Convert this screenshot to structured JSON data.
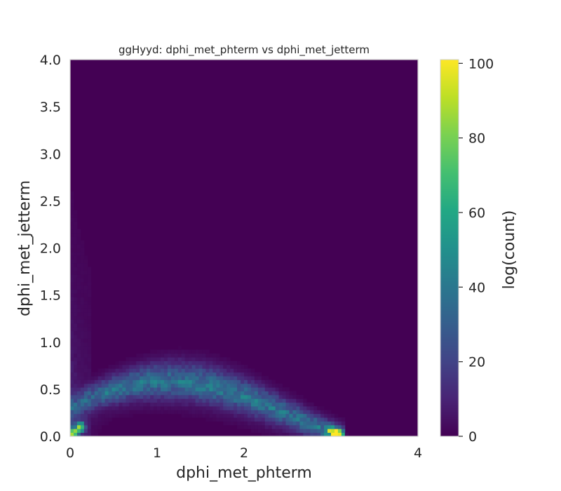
{
  "chart_data": {
    "type": "heatmap",
    "title": "ggHyyd: dphi_met_phterm vs dphi_met_jetterm",
    "xlabel": "dphi_met_phterm",
    "ylabel": "dphi_met_jetterm",
    "xlim": [
      0,
      4
    ],
    "ylim": [
      0,
      4
    ],
    "x_ticks": [
      "0",
      "1",
      "2",
      "4"
    ],
    "y_ticks": [
      "0.0",
      "0.5",
      "1.0",
      "1.5",
      "2.0",
      "2.5",
      "3.0",
      "3.5",
      "4.0"
    ],
    "bins": 100,
    "colormap": "viridis",
    "colorbar": {
      "label": "log(count)",
      "range": [
        0,
        101
      ],
      "ticks": [
        "0",
        "20",
        "40",
        "60",
        "80",
        "100"
      ]
    },
    "hotspots": [
      {
        "x": 0.04,
        "y": 0.04,
        "value": 90
      },
      {
        "x": 0.12,
        "y": 0.1,
        "value": 75
      },
      {
        "x": 3.08,
        "y": 0.02,
        "value": 100
      },
      {
        "x": 3.0,
        "y": 0.06,
        "value": 60
      }
    ],
    "band": {
      "description": "arc from (0, ~0.3) peaking ~0.5 near x=1.5 descending to (3.1, 0)"
    },
    "grid": false,
    "legend": "none"
  }
}
